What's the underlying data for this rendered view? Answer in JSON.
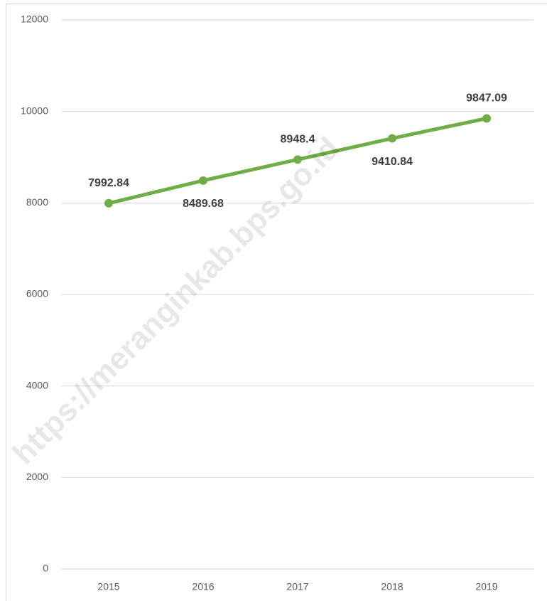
{
  "chart_data": {
    "type": "line",
    "categories": [
      "2015",
      "2016",
      "2017",
      "2018",
      "2019"
    ],
    "series": [
      {
        "name": "Value",
        "color": "#70ad47",
        "values": [
          7992.84,
          8489.68,
          8948.4,
          9410.84,
          9847.09
        ]
      }
    ],
    "ylim": [
      0,
      12000
    ],
    "yticks": [
      0,
      2000,
      4000,
      6000,
      8000,
      10000,
      12000
    ],
    "grid": true,
    "watermark": "https://meranginkab.bps.go.id"
  }
}
